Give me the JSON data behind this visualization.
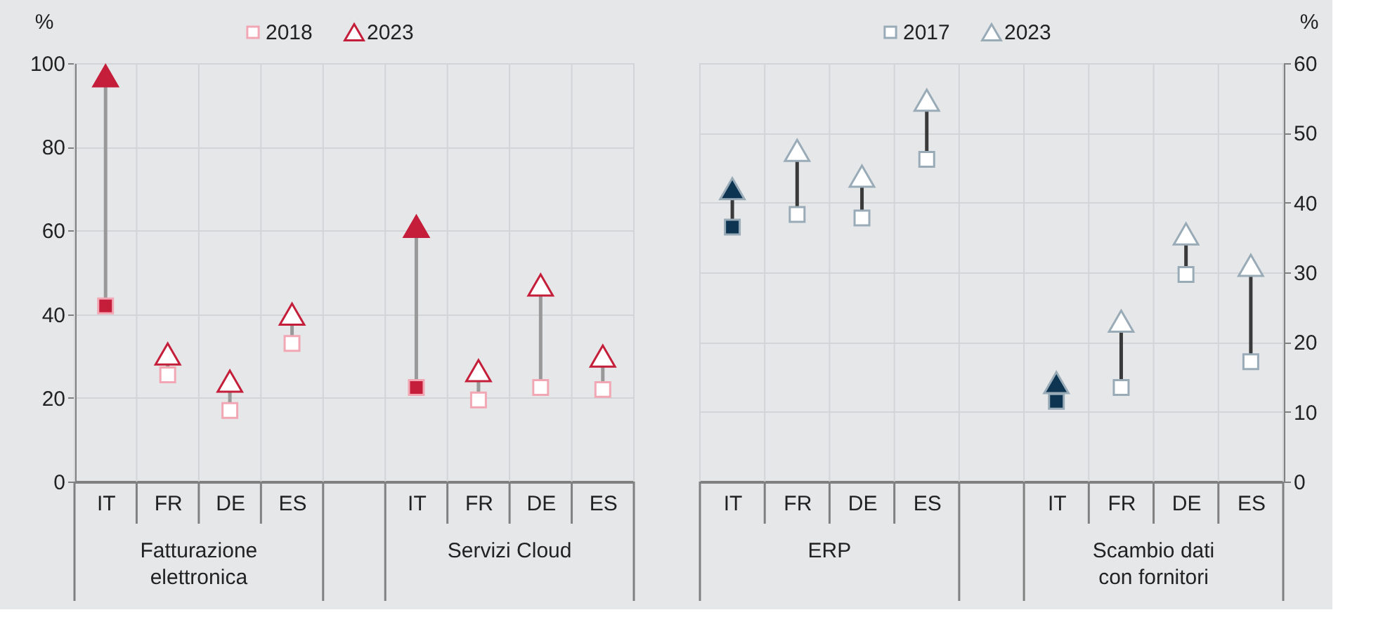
{
  "chart_data": [
    {
      "type": "scatter",
      "categories": [
        "IT",
        "FR",
        "DE",
        "ES",
        null,
        "IT",
        "FR",
        "DE",
        "ES"
      ],
      "ylabel": "%",
      "ylim": [
        0,
        100
      ],
      "yticks": [
        0,
        20,
        40,
        60,
        80,
        100
      ],
      "grid": true,
      "legend": "top",
      "annotations": [
        "Fatturazione elettronica",
        "Servizi Cloud"
      ],
      "series": [
        {
          "name": "2018",
          "marker": "square",
          "color": "#f2a7b5",
          "colors": [
            "#c41e3a",
            "#ffffff",
            "#ffffff",
            "#ffffff",
            null,
            "#c41e3a",
            "#ffffff",
            "#ffffff",
            "#ffffff"
          ],
          "values": [
            42,
            25.5,
            17,
            33,
            null,
            22.5,
            19.5,
            22.5,
            22
          ]
        },
        {
          "name": "2023",
          "marker": "triangle",
          "color": "#c41e3a",
          "colors": [
            "#c41e3a",
            "#ffffff",
            "#ffffff",
            "#ffffff",
            null,
            "#c41e3a",
            "#ffffff",
            "#ffffff",
            "#ffffff"
          ],
          "values": [
            97,
            30.5,
            24,
            40,
            null,
            61,
            26.5,
            47,
            30
          ]
        }
      ]
    },
    {
      "type": "scatter",
      "categories": [
        "IT",
        "FR",
        "DE",
        "ES",
        null,
        "IT",
        "FR",
        "DE",
        "ES"
      ],
      "y2label": "%",
      "y2lim": [
        0,
        60
      ],
      "y2ticks": [
        0,
        10,
        20,
        30,
        40,
        50,
        60
      ],
      "grid": true,
      "legend": "top",
      "annotations": [
        "ERP",
        "Scambio dati con fornitori"
      ],
      "series": [
        {
          "name": "2017",
          "marker": "square",
          "axis": "y2",
          "color": "#9aabb8",
          "colors": [
            "#0d3552",
            "#ffffff",
            "#ffffff",
            "#ffffff",
            null,
            "#0d3552",
            "#ffffff",
            "#ffffff",
            "#ffffff"
          ],
          "values": [
            36.5,
            38.3,
            37.8,
            46.2,
            null,
            11.5,
            13.5,
            29.7,
            17.2
          ]
        },
        {
          "name": "2023",
          "marker": "triangle",
          "axis": "y2",
          "color": "#9aabb8",
          "colors": [
            "#0d3552",
            "#ffffff",
            "#ffffff",
            "#ffffff",
            null,
            "#0d3552",
            "#ffffff",
            "#ffffff",
            "#ffffff"
          ],
          "values": [
            42,
            47.5,
            43.8,
            54.7,
            null,
            14.2,
            23,
            35.5,
            31
          ]
        }
      ]
    }
  ]
}
